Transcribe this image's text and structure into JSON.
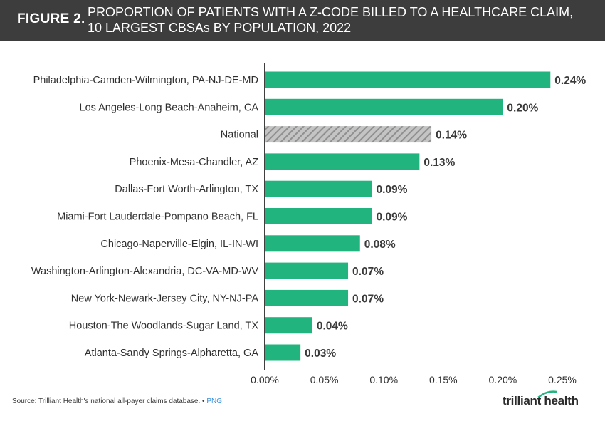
{
  "header": {
    "figure_label": "FIGURE 2.",
    "title_line1": "PROPORTION OF PATIENTS WITH A Z-CODE BILLED TO A HEALTHCARE CLAIM,",
    "title_line2": "10 LARGEST CBSAs BY POPULATION, 2022"
  },
  "chart_data": {
    "type": "bar",
    "orientation": "horizontal",
    "categories": [
      "Philadelphia-Camden-Wilmington, PA-NJ-DE-MD",
      "Los Angeles-Long Beach-Anaheim, CA",
      "National",
      "Phoenix-Mesa-Chandler, AZ",
      "Dallas-Fort Worth-Arlington, TX",
      "Miami-Fort Lauderdale-Pompano Beach, FL",
      "Chicago-Naperville-Elgin, IL-IN-WI",
      "Washington-Arlington-Alexandria, DC-VA-MD-WV",
      "New York-Newark-Jersey City, NY-NJ-PA",
      "Houston-The Woodlands-Sugar Land, TX",
      "Atlanta-Sandy Springs-Alpharetta, GA"
    ],
    "values": [
      0.24,
      0.2,
      0.14,
      0.13,
      0.09,
      0.09,
      0.08,
      0.07,
      0.07,
      0.04,
      0.03
    ],
    "value_labels": [
      "0.24%",
      "0.20%",
      "0.14%",
      "0.13%",
      "0.09%",
      "0.09%",
      "0.08%",
      "0.07%",
      "0.07%",
      "0.04%",
      "0.03%"
    ],
    "highlight_category": "National",
    "xlim": [
      0,
      0.25
    ],
    "xticks": [
      0,
      0.05,
      0.1,
      0.15,
      0.2,
      0.25
    ],
    "xtick_labels": [
      "0.00%",
      "0.05%",
      "0.10%",
      "0.15%",
      "0.20%",
      "0.25%"
    ],
    "xlabel": "",
    "ylabel": "",
    "grid": false,
    "bar_color": "#22b47e",
    "highlight_color": "#9a9a9a"
  },
  "footer": {
    "source_text": "Source: Trilliant Health's national all-payer claims database. •",
    "png_link": "PNG",
    "logo_text": "trilliant health"
  }
}
